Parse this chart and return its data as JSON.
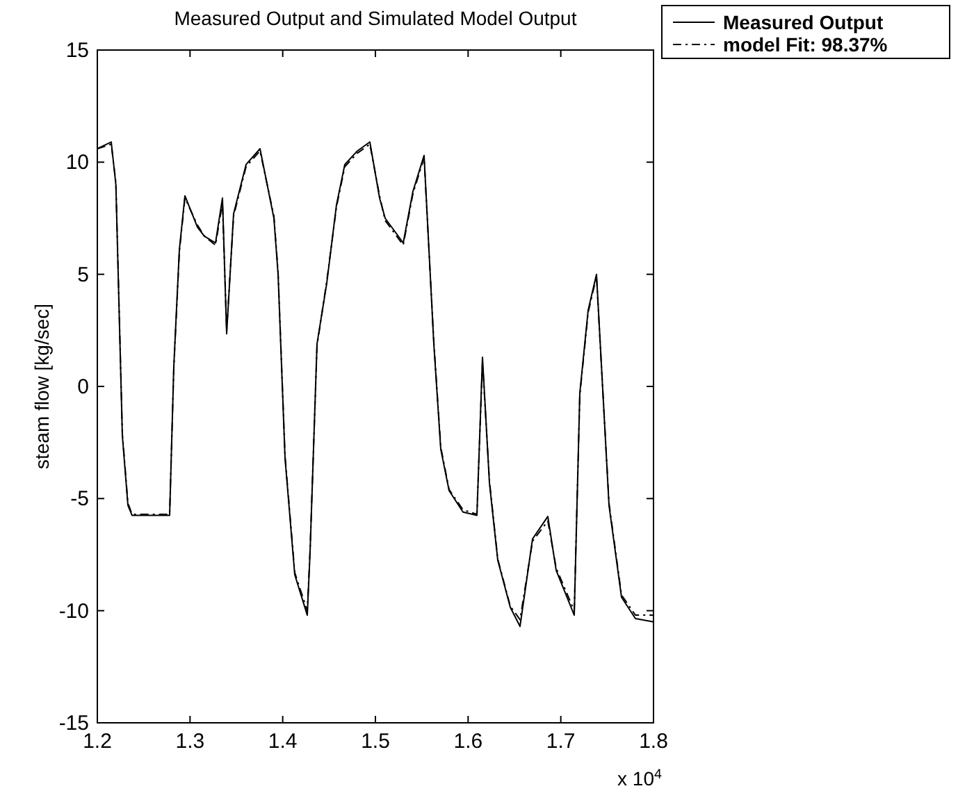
{
  "chart_data": {
    "type": "line",
    "title": "Measured Output and Simulated Model Output",
    "ylabel": "steam flow [kg/sec]",
    "annotations": [
      "x 10$^{4}$"
    ],
    "xlim": [
      1.2,
      1.8
    ],
    "ylim": [
      -15,
      15
    ],
    "xticks": [
      1.2,
      1.3,
      1.4,
      1.5,
      1.6,
      1.7,
      1.8
    ],
    "yticks": [
      -15,
      -10,
      -5,
      0,
      5,
      10,
      15
    ],
    "grid": false,
    "legend": "top right",
    "series": [
      {
        "name": "Measured Output",
        "color": "#000000",
        "line_style": "solid",
        "x": [
          1.2,
          1.215,
          1.22,
          1.227,
          1.233,
          1.2375,
          1.278,
          1.2825,
          1.2885,
          1.2945,
          1.308,
          1.3155,
          1.3275,
          1.335,
          1.3395,
          1.347,
          1.3605,
          1.3755,
          1.3905,
          1.395,
          1.4025,
          1.413,
          1.4265,
          1.4295,
          1.437,
          1.4475,
          1.458,
          1.467,
          1.4805,
          1.494,
          1.5045,
          1.5105,
          1.53,
          1.5405,
          1.5525,
          1.563,
          1.5705,
          1.5795,
          1.5945,
          1.6095,
          1.6155,
          1.623,
          1.632,
          1.6455,
          1.656,
          1.6695,
          1.686,
          1.695,
          1.7145,
          1.7205,
          1.7295,
          1.7385,
          1.752,
          1.7655,
          1.7805,
          1.8
        ],
        "values": [
          10.6,
          10.9,
          9.0,
          -2.2,
          -5.3,
          -5.75,
          -5.75,
          0.9,
          6.1,
          8.5,
          7.1,
          6.7,
          6.4,
          8.4,
          2.35,
          7.7,
          9.9,
          10.6,
          7.5,
          5.0,
          -3.2,
          -8.4,
          -10.2,
          -7.4,
          1.9,
          4.6,
          8.1,
          9.9,
          10.5,
          10.9,
          8.4,
          7.5,
          6.4,
          8.7,
          10.3,
          1.9,
          -2.8,
          -4.65,
          -5.6,
          -5.75,
          1.3,
          -4.3,
          -7.75,
          -9.85,
          -10.7,
          -6.8,
          -5.8,
          -8.2,
          -10.2,
          -0.3,
          3.4,
          5.0,
          -5.3,
          -9.4,
          -10.35,
          -10.5
        ]
      },
      {
        "name": "model Fit: 98.37%",
        "color": "#000000",
        "line_style": "dashed",
        "x": [
          1.2,
          1.215,
          1.22,
          1.227,
          1.233,
          1.2375,
          1.278,
          1.2825,
          1.2885,
          1.2945,
          1.308,
          1.3155,
          1.3275,
          1.335,
          1.3395,
          1.347,
          1.3605,
          1.3755,
          1.3905,
          1.395,
          1.4025,
          1.413,
          1.4265,
          1.4295,
          1.437,
          1.4475,
          1.458,
          1.467,
          1.4805,
          1.494,
          1.5045,
          1.5105,
          1.53,
          1.5405,
          1.5525,
          1.563,
          1.5705,
          1.5795,
          1.5945,
          1.6095,
          1.6155,
          1.623,
          1.632,
          1.6455,
          1.656,
          1.6695,
          1.686,
          1.695,
          1.7145,
          1.7205,
          1.7295,
          1.7385,
          1.752,
          1.7655,
          1.7805,
          1.8
        ],
        "values": [
          10.6,
          10.8,
          9.1,
          -2.1,
          -5.2,
          -5.7,
          -5.7,
          0.8,
          6.0,
          8.4,
          7.2,
          6.7,
          6.3,
          8.2,
          2.5,
          7.6,
          9.8,
          10.5,
          7.6,
          5.1,
          -3.1,
          -8.3,
          -10.0,
          -7.3,
          1.8,
          4.7,
          8.0,
          9.8,
          10.4,
          10.8,
          8.5,
          7.4,
          6.3,
          8.6,
          10.2,
          2.0,
          -2.7,
          -4.6,
          -5.5,
          -5.7,
          1.1,
          -4.2,
          -7.7,
          -9.8,
          -10.4,
          -6.9,
          -6.0,
          -8.1,
          -10.0,
          -0.4,
          3.3,
          4.9,
          -5.2,
          -9.3,
          -10.2,
          -10.2
        ]
      }
    ]
  }
}
